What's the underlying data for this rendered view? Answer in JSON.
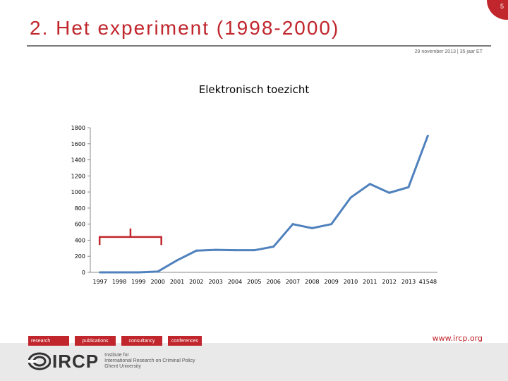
{
  "slide": {
    "page_number": "5",
    "title": "2. Het experiment (1998-2000)",
    "date_line": "29 november 2013 | 35 jaar ET"
  },
  "chart_data": {
    "type": "line",
    "title": "Elektronisch toezicht",
    "categories": [
      "1997",
      "1998",
      "1999",
      "2000",
      "2001",
      "2002",
      "2003",
      "2004",
      "2005",
      "2006",
      "2007",
      "2008",
      "2009",
      "2010",
      "2011",
      "2012",
      "2013",
      "41548"
    ],
    "values": [
      0,
      0,
      0,
      10,
      150,
      270,
      280,
      275,
      275,
      320,
      600,
      550,
      600,
      930,
      1100,
      990,
      1060,
      1700
    ],
    "yticks": [
      "0",
      "200",
      "400",
      "600",
      "800",
      "1000",
      "1200",
      "1400",
      "1600",
      "1800"
    ],
    "ylim": [
      0,
      1800
    ],
    "grid": false,
    "line_color": "#4f81bd",
    "annotation": "bracket over 1997-2000 period",
    "annotation_color": "#c0262c"
  },
  "footer": {
    "tabs": [
      "research",
      "publications",
      "consultancy",
      "conferences"
    ],
    "website": "www.ircp.org",
    "logo_text": "IRCP",
    "logo_sub_1": "Institute for",
    "logo_sub_2": "International Research on Criminal Policy",
    "logo_sub_3": "Ghent University"
  },
  "colors": {
    "accent": "#c0262c",
    "series": "#4f81bd"
  }
}
